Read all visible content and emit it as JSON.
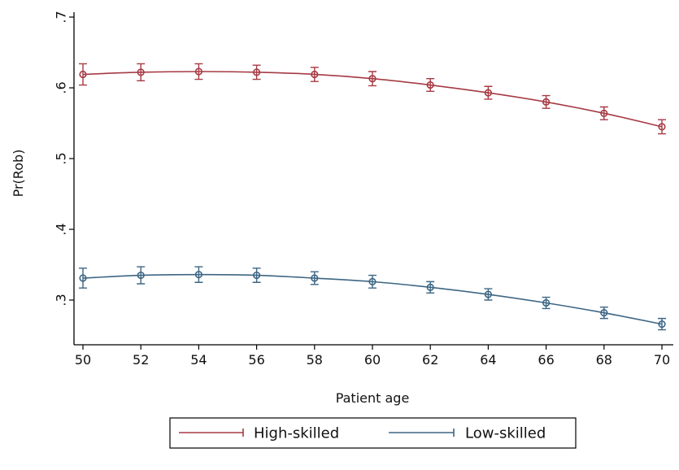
{
  "chart_data": {
    "type": "line",
    "xlabel": "Patient age",
    "ylabel": "Pr(Rob)",
    "x": [
      50,
      52,
      54,
      56,
      58,
      60,
      62,
      64,
      66,
      68,
      70
    ],
    "xlim": [
      50,
      70
    ],
    "ylim": [
      0.25,
      0.7
    ],
    "x_ticks": [
      "50",
      "52",
      "54",
      "56",
      "58",
      "60",
      "62",
      "64",
      "66",
      "68",
      "70"
    ],
    "y_ticks": [
      {
        "value": 0.3,
        "label": ".3"
      },
      {
        "value": 0.4,
        "label": ".4"
      },
      {
        "value": 0.5,
        "label": ".5"
      },
      {
        "value": 0.6,
        "label": ".6"
      },
      {
        "value": 0.7,
        "label": ".7"
      }
    ],
    "grid": false,
    "legend_position": "bottom",
    "series": [
      {
        "name": "High-skilled",
        "color": "#a63a44",
        "values": [
          0.619,
          0.622,
          0.623,
          0.622,
          0.619,
          0.613,
          0.604,
          0.593,
          0.58,
          0.564,
          0.545
        ],
        "ci_low": [
          0.604,
          0.61,
          0.612,
          0.612,
          0.609,
          0.603,
          0.595,
          0.584,
          0.571,
          0.555,
          0.535
        ],
        "ci_high": [
          0.634,
          0.634,
          0.634,
          0.632,
          0.629,
          0.623,
          0.613,
          0.602,
          0.589,
          0.573,
          0.555
        ]
      },
      {
        "name": "Low-skilled",
        "color": "#3d6684",
        "values": [
          0.331,
          0.335,
          0.336,
          0.335,
          0.331,
          0.326,
          0.318,
          0.308,
          0.296,
          0.282,
          0.266
        ],
        "ci_low": [
          0.317,
          0.323,
          0.325,
          0.325,
          0.322,
          0.317,
          0.31,
          0.3,
          0.288,
          0.274,
          0.258
        ],
        "ci_high": [
          0.345,
          0.347,
          0.347,
          0.345,
          0.34,
          0.335,
          0.326,
          0.316,
          0.304,
          0.29,
          0.274
        ]
      }
    ]
  }
}
